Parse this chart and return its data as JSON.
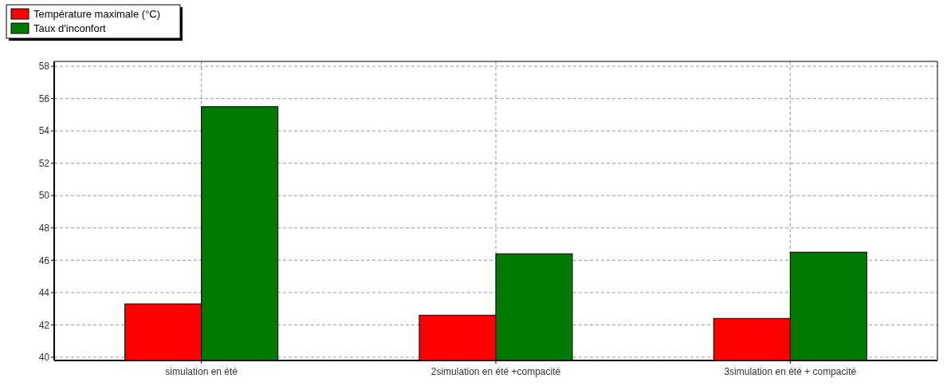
{
  "chart_data": {
    "type": "bar",
    "categories": [
      "simulation en été",
      "2simulation en été +compacité",
      "3simulation en été + compacité"
    ],
    "series": [
      {
        "name": "Température maximale (°C)",
        "color": "#ff0000",
        "values": [
          43.3,
          42.6,
          42.4
        ]
      },
      {
        "name": "Taux d'inconfort",
        "color": "#007a00",
        "values": [
          55.5,
          46.4,
          46.5
        ]
      }
    ],
    "ylim": [
      39.8,
      58.3
    ],
    "yticks": [
      40,
      42,
      44,
      46,
      48,
      50,
      52,
      54,
      56,
      58
    ],
    "grid": true,
    "legend": "top left"
  }
}
